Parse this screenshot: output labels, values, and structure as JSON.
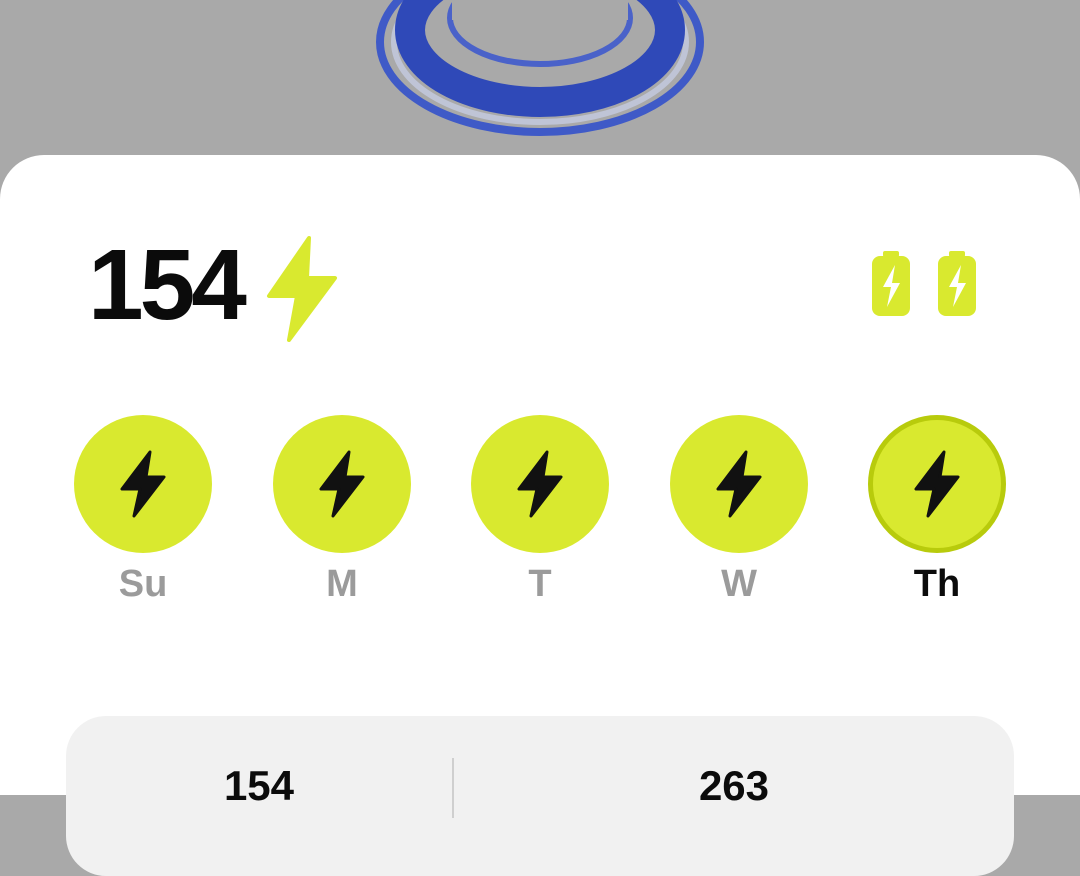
{
  "streak": {
    "count": "154"
  },
  "freezes": {
    "count": 2
  },
  "week": [
    {
      "label": "Su",
      "completed": true,
      "today": false
    },
    {
      "label": "M",
      "completed": true,
      "today": false
    },
    {
      "label": "T",
      "completed": true,
      "today": false
    },
    {
      "label": "W",
      "completed": true,
      "today": false
    },
    {
      "label": "Th",
      "completed": true,
      "today": true
    }
  ],
  "stats": {
    "left_value": "154",
    "right_value": "263"
  },
  "icons": {
    "streak": "lightning-bolt-icon",
    "freeze": "battery-bolt-icon",
    "day": "lightning-bolt-icon"
  },
  "colors": {
    "accent": "#d9e92f",
    "accent_border": "#b8cb0c",
    "ring": "#2f49b8",
    "backdrop": "#a9a9a9",
    "card": "#f1f1f1",
    "text_dark": "#0b0b0b",
    "text_muted": "#9b9b9b"
  }
}
